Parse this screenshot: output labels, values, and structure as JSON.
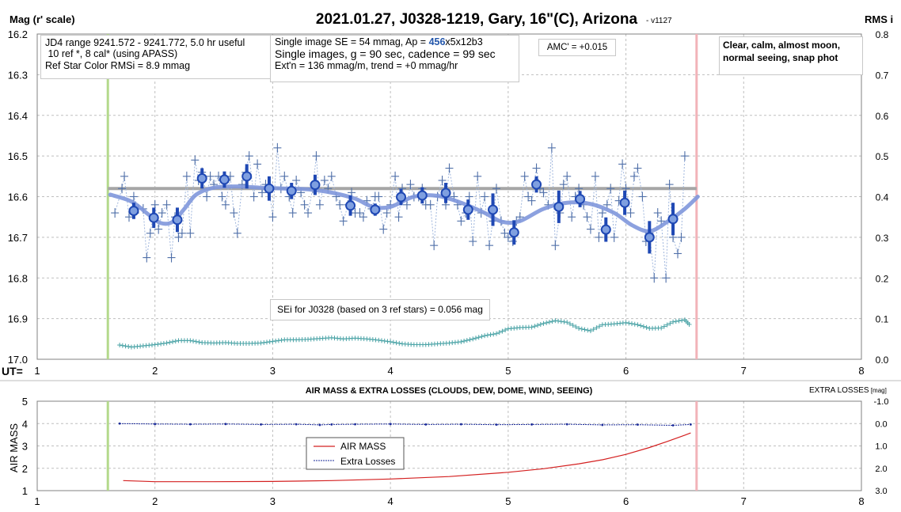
{
  "header": {
    "title": "2021.01.27, J0328-1219, Gary, 16\"(C), Arizona",
    "version": "- v1127",
    "left_axis_title": "Mag (r' scale)",
    "right_axis_title": "RMS i"
  },
  "info_boxes": {
    "box1": [
      "JD4 range 9241.572 - 9241.772, 5.0 hr useful",
      " 10 ref *, 8 cal* (using APASS)",
      "Ref Star Color RMSi = 8.9 mmag"
    ],
    "box2": {
      "line1_pre": "Single image SE = 54 mmag, Ap = ",
      "line1_ap": "456",
      "line1_post": "x5x12b3",
      "line2": "Single images, g = 90 sec, cadence = 99 sec",
      "line3": "Ext'n = 136 mmag/m, trend = +0 mmag/hr"
    },
    "amc": "AMC' = +0.015",
    "conditions": [
      "Clear, calm, almost moon,",
      "normal seeing, snap phot"
    ],
    "sei": "SEi for J0328 (based on 3 ref stars) = 0.056 mag"
  },
  "colors": {
    "grid": "#bfbfbf",
    "green_marker": "#b4d98c",
    "pink_marker": "#f2b3b9",
    "ref_line": "#a6a6a6",
    "fit": "#7f97dc",
    "points": "#4f6fa8",
    "binned": "#1f48b4",
    "rms": "#4aa3a6",
    "airmass": "#d42020",
    "losses": "#1a2a99",
    "accent": "#2255aa"
  },
  "chart_data": [
    {
      "type": "scatter",
      "xlabel": "UT=",
      "ylabel": "Mag (r' scale)",
      "y2label": "RMS i",
      "xlim": [
        1,
        8
      ],
      "ylim": [
        16.2,
        17.0
      ],
      "y2lim": [
        0.0,
        0.8
      ],
      "y_inverted": true,
      "grid": true,
      "x_ticks": [
        1,
        2,
        3,
        4,
        5,
        6,
        7,
        8
      ],
      "y_ticks": [
        16.2,
        16.3,
        16.4,
        16.5,
        16.6,
        16.7,
        16.8,
        16.9,
        17.0
      ],
      "y2_ticks": [
        0.8,
        0.7,
        0.6,
        0.5,
        0.4,
        0.3,
        0.2,
        0.1,
        0.0
      ],
      "vertical_markers": [
        {
          "x": 1.6,
          "color": "green"
        },
        {
          "x": 6.6,
          "color": "pink"
        }
      ],
      "reference_line": {
        "y": 16.58,
        "x_range": [
          1.6,
          6.6
        ]
      },
      "series": [
        {
          "role": "single_images",
          "x": [
            1.66,
            1.72,
            1.74,
            1.78,
            1.82,
            1.86,
            1.9,
            1.93,
            1.96,
            2.0,
            2.03,
            2.06,
            2.1,
            2.14,
            2.17,
            2.2,
            2.23,
            2.27,
            2.3,
            2.34,
            2.37,
            2.4,
            2.44,
            2.47,
            2.5,
            2.54,
            2.57,
            2.6,
            2.64,
            2.67,
            2.7,
            2.74,
            2.77,
            2.8,
            2.84,
            2.87,
            2.91,
            2.94,
            2.97,
            3.0,
            3.04,
            3.07,
            3.1,
            3.14,
            3.17,
            3.2,
            3.24,
            3.27,
            3.3,
            3.34,
            3.37,
            3.4,
            3.44,
            3.47,
            3.5,
            3.54,
            3.57,
            3.6,
            3.64,
            3.67,
            3.7,
            3.74,
            3.77,
            3.8,
            3.84,
            3.87,
            3.9,
            3.94,
            3.97,
            4.0,
            4.04,
            4.07,
            4.1,
            4.14,
            4.17,
            4.2,
            4.24,
            4.27,
            4.3,
            4.34,
            4.37,
            4.4,
            4.44,
            4.47,
            4.5,
            4.54,
            4.57,
            4.6,
            4.64,
            4.67,
            4.7,
            4.74,
            4.77,
            4.8,
            4.84,
            4.87,
            4.9,
            4.94,
            4.97,
            5.0,
            5.04,
            5.07,
            5.1,
            5.14,
            5.17,
            5.2,
            5.24,
            5.27,
            5.3,
            5.34,
            5.37,
            5.4,
            5.44,
            5.47,
            5.5,
            5.54,
            5.57,
            5.6,
            5.64,
            5.67,
            5.7,
            5.74,
            5.77,
            5.8,
            5.84,
            5.87,
            5.9,
            5.94,
            5.97,
            6.0,
            6.04,
            6.07,
            6.1,
            6.14,
            6.17,
            6.2,
            6.24,
            6.27,
            6.3,
            6.34,
            6.37,
            6.4,
            6.44,
            6.47,
            6.5
          ],
          "y": [
            16.64,
            16.58,
            16.55,
            16.65,
            16.6,
            16.63,
            16.63,
            16.75,
            16.69,
            16.62,
            16.68,
            16.64,
            16.62,
            16.75,
            16.65,
            16.7,
            16.69,
            16.55,
            16.69,
            16.51,
            16.56,
            16.54,
            16.6,
            16.55,
            16.57,
            16.55,
            16.6,
            16.62,
            16.55,
            16.64,
            16.69,
            16.57,
            16.54,
            16.5,
            16.6,
            16.52,
            16.59,
            16.57,
            16.58,
            16.65,
            16.48,
            16.58,
            16.55,
            16.6,
            16.64,
            16.56,
            16.59,
            16.62,
            16.64,
            16.58,
            16.5,
            16.62,
            16.56,
            16.58,
            16.55,
            16.6,
            16.62,
            16.66,
            16.62,
            16.59,
            16.64,
            16.64,
            16.65,
            16.61,
            16.63,
            16.6,
            16.6,
            16.68,
            16.64,
            16.62,
            16.55,
            16.65,
            16.58,
            16.62,
            16.57,
            16.6,
            16.6,
            16.58,
            16.62,
            16.62,
            16.72,
            16.6,
            16.56,
            16.62,
            16.53,
            16.6,
            16.62,
            16.66,
            16.64,
            16.6,
            16.71,
            16.55,
            16.64,
            16.6,
            16.72,
            16.66,
            16.58,
            16.66,
            16.69,
            16.7,
            16.71,
            16.66,
            16.65,
            16.55,
            16.6,
            16.61,
            16.53,
            16.58,
            16.59,
            16.62,
            16.48,
            16.72,
            16.64,
            16.57,
            16.55,
            16.65,
            16.6,
            16.58,
            16.62,
            16.65,
            16.68,
            16.55,
            16.7,
            16.64,
            16.62,
            16.58,
            16.7,
            16.61,
            16.52,
            16.58,
            16.64,
            16.55,
            16.53,
            16.6,
            16.71,
            16.69,
            16.8,
            16.64,
            16.66,
            16.8,
            16.57,
            16.7,
            16.74,
            16.7,
            16.5
          ],
          "color": "#4f6fa8"
        },
        {
          "role": "binned_averages",
          "x": [
            1.82,
            1.99,
            2.19,
            2.4,
            2.59,
            2.78,
            2.97,
            3.16,
            3.36,
            3.66,
            3.87,
            4.09,
            4.27,
            4.47,
            4.66,
            4.87,
            5.05,
            5.24,
            5.43,
            5.61,
            5.83,
            5.99,
            6.2,
            6.4
          ],
          "y": [
            16.635,
            16.652,
            16.657,
            16.555,
            16.558,
            16.55,
            16.58,
            16.586,
            16.571,
            16.622,
            16.632,
            16.601,
            16.597,
            16.591,
            16.632,
            16.632,
            16.688,
            16.57,
            16.625,
            16.606,
            16.681,
            16.615,
            16.7,
            16.655
          ],
          "err": [
            0.02,
            0.025,
            0.03,
            0.025,
            0.02,
            0.03,
            0.03,
            0.02,
            0.025,
            0.025,
            0.015,
            0.02,
            0.02,
            0.025,
            0.025,
            0.04,
            0.03,
            0.02,
            0.04,
            0.02,
            0.03,
            0.03,
            0.04,
            0.04
          ],
          "color": "#1f48b4"
        },
        {
          "role": "model_fit",
          "x": [
            1.62,
            1.8,
            1.95,
            2.05,
            2.15,
            2.25,
            2.35,
            2.5,
            2.7,
            2.9,
            3.1,
            3.3,
            3.5,
            3.7,
            3.85,
            4.0,
            4.2,
            4.4,
            4.6,
            4.8,
            4.95,
            5.1,
            5.3,
            5.5,
            5.7,
            5.9,
            6.05,
            6.2,
            6.35,
            6.5,
            6.61
          ],
          "y": [
            16.595,
            16.612,
            16.645,
            16.665,
            16.662,
            16.63,
            16.595,
            16.578,
            16.575,
            16.578,
            16.58,
            16.582,
            16.59,
            16.605,
            16.625,
            16.625,
            16.6,
            16.598,
            16.615,
            16.64,
            16.662,
            16.66,
            16.63,
            16.615,
            16.618,
            16.64,
            16.67,
            16.685,
            16.662,
            16.63,
            16.6
          ],
          "color": "#7f97dc"
        },
        {
          "role": "rms_right_axis",
          "name": "RMS i",
          "x": [
            1.7,
            1.8,
            1.9,
            2.0,
            2.1,
            2.2,
            2.3,
            2.4,
            2.5,
            2.6,
            2.7,
            2.8,
            2.9,
            3.0,
            3.1,
            3.2,
            3.3,
            3.4,
            3.5,
            3.6,
            3.7,
            3.8,
            3.9,
            4.0,
            4.1,
            4.2,
            4.3,
            4.4,
            4.5,
            4.6,
            4.7,
            4.8,
            4.9,
            5.0,
            5.1,
            5.2,
            5.3,
            5.4,
            5.5,
            5.6,
            5.7,
            5.8,
            5.9,
            6.0,
            6.1,
            6.2,
            6.3,
            6.4,
            6.5,
            6.55
          ],
          "y": [
            0.035,
            0.03,
            0.033,
            0.036,
            0.04,
            0.046,
            0.046,
            0.041,
            0.04,
            0.041,
            0.039,
            0.039,
            0.04,
            0.044,
            0.048,
            0.048,
            0.049,
            0.051,
            0.053,
            0.05,
            0.052,
            0.05,
            0.047,
            0.043,
            0.038,
            0.036,
            0.036,
            0.038,
            0.04,
            0.043,
            0.05,
            0.058,
            0.063,
            0.075,
            0.078,
            0.079,
            0.088,
            0.095,
            0.091,
            0.076,
            0.07,
            0.085,
            0.087,
            0.09,
            0.085,
            0.076,
            0.077,
            0.092,
            0.097,
            0.082
          ],
          "color": "#4aa3a6"
        }
      ]
    },
    {
      "type": "line",
      "title": "AIR MASS & EXTRA LOSSES (CLOUDS, DEW, DOME, WIND, SEEING)",
      "ylabel": "AIR MASS",
      "y2label": "EXTRA LOSSES [mag]",
      "xlim": [
        1,
        8
      ],
      "ylim": [
        1,
        5
      ],
      "y2lim": [
        -1.0,
        3.0
      ],
      "y2_inverted": true,
      "grid": true,
      "x_ticks": [
        1,
        2,
        3,
        4,
        5,
        6,
        7,
        8
      ],
      "y_ticks": [
        1,
        2,
        3,
        4,
        5
      ],
      "y2_ticks": [
        "-1.0",
        "0.0",
        "1.0",
        "2.0",
        "3.0"
      ],
      "legend": [
        "AIR MASS",
        "Extra Losses"
      ],
      "vertical_markers": [
        {
          "x": 1.6,
          "color": "green"
        },
        {
          "x": 6.6,
          "color": "pink"
        }
      ],
      "series": [
        {
          "name": "AIR MASS",
          "x": [
            1.73,
            2.0,
            2.5,
            3.0,
            3.5,
            4.0,
            4.5,
            5.0,
            5.3,
            5.6,
            5.8,
            6.0,
            6.2,
            6.35,
            6.5,
            6.55
          ],
          "y": [
            1.45,
            1.4,
            1.4,
            1.41,
            1.45,
            1.52,
            1.63,
            1.82,
            1.98,
            2.2,
            2.38,
            2.62,
            2.93,
            3.2,
            3.48,
            3.58
          ],
          "color": "#d42020"
        },
        {
          "name": "Extra Losses",
          "x": [
            1.7,
            2.0,
            2.3,
            2.6,
            2.9,
            3.2,
            3.4,
            3.5,
            3.7,
            4.0,
            4.3,
            4.6,
            4.9,
            5.2,
            5.5,
            5.8,
            6.1,
            6.4,
            6.55
          ],
          "y": [
            0.0,
            0.02,
            0.03,
            0.02,
            0.04,
            0.03,
            0.06,
            0.04,
            0.03,
            0.02,
            0.04,
            0.03,
            0.05,
            0.04,
            0.03,
            0.06,
            0.05,
            0.08,
            0.04
          ],
          "color": "#1a2a99"
        }
      ]
    }
  ]
}
